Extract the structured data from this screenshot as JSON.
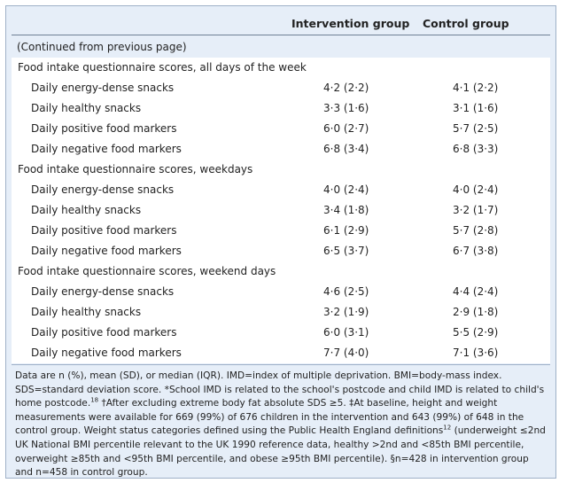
{
  "header": {
    "col1": "Intervention group",
    "col2": "Control group"
  },
  "continued": "(Continued from previous page)",
  "sections": [
    {
      "title": "Food intake questionnaire scores, all days of the week",
      "rows": [
        {
          "label": "Daily energy-dense snacks",
          "intervention": "4·2 (2·2)",
          "control": "4·1 (2·2)"
        },
        {
          "label": "Daily healthy snacks",
          "intervention": "3·3 (1·6)",
          "control": "3·1 (1·6)"
        },
        {
          "label": "Daily positive food markers",
          "intervention": "6·0 (2·7)",
          "control": "5·7 (2·5)"
        },
        {
          "label": "Daily negative food markers",
          "intervention": "6·8 (3·4)",
          "control": "6·8 (3·3)"
        }
      ]
    },
    {
      "title": "Food intake questionnaire scores, weekdays",
      "rows": [
        {
          "label": "Daily energy-dense snacks",
          "intervention": "4·0 (2·4)",
          "control": "4·0 (2·4)"
        },
        {
          "label": "Daily healthy snacks",
          "intervention": "3·4 (1·8)",
          "control": "3·2 (1·7)"
        },
        {
          "label": "Daily positive food markers",
          "intervention": "6·1 (2·9)",
          "control": "5·7 (2·8)"
        },
        {
          "label": "Daily negative food markers",
          "intervention": "6·5 (3·7)",
          "control": "6·7 (3·8)"
        }
      ]
    },
    {
      "title": "Food intake questionnaire scores, weekend days",
      "rows": [
        {
          "label": "Daily energy-dense snacks",
          "intervention": "4·6 (2·5)",
          "control": "4·4 (2·4)"
        },
        {
          "label": "Daily healthy snacks",
          "intervention": "3·2 (1·9)",
          "control": "2·9 (1·8)"
        },
        {
          "label": "Daily positive food markers",
          "intervention": "6·0 (3·1)",
          "control": "5·5 (2·9)"
        },
        {
          "label": "Daily negative food markers",
          "intervention": "7·7 (4·0)",
          "control": "7·1 (3·6)"
        }
      ]
    }
  ],
  "footnote": {
    "p1": "Data are n (%), mean (SD), or median (IQR). IMD=index of multiple deprivation. BMI=body-mass index. SDS=standard deviation score. *School IMD is related to the school's postcode and child IMD is related to child's home postcode.",
    "ref1": "18",
    "p2": " †After excluding extreme body fat absolute SDS ≥5. ‡At baseline, height and weight measurements were available for 669 (99%) of 676 children in the intervention and 643 (99%) of 648 in the control group. Weight status categories defined using the Public Health England definitions",
    "ref2": "12",
    "p3": " (underweight ≤2nd UK National BMI percentile relevant to the UK 1990 reference data, healthy >2nd and <85th BMI percentile, overweight ≥85th and <95th BMI percentile, and obese ≥95th BMI percentile). §n=428 in intervention group and n=458 in control group."
  }
}
